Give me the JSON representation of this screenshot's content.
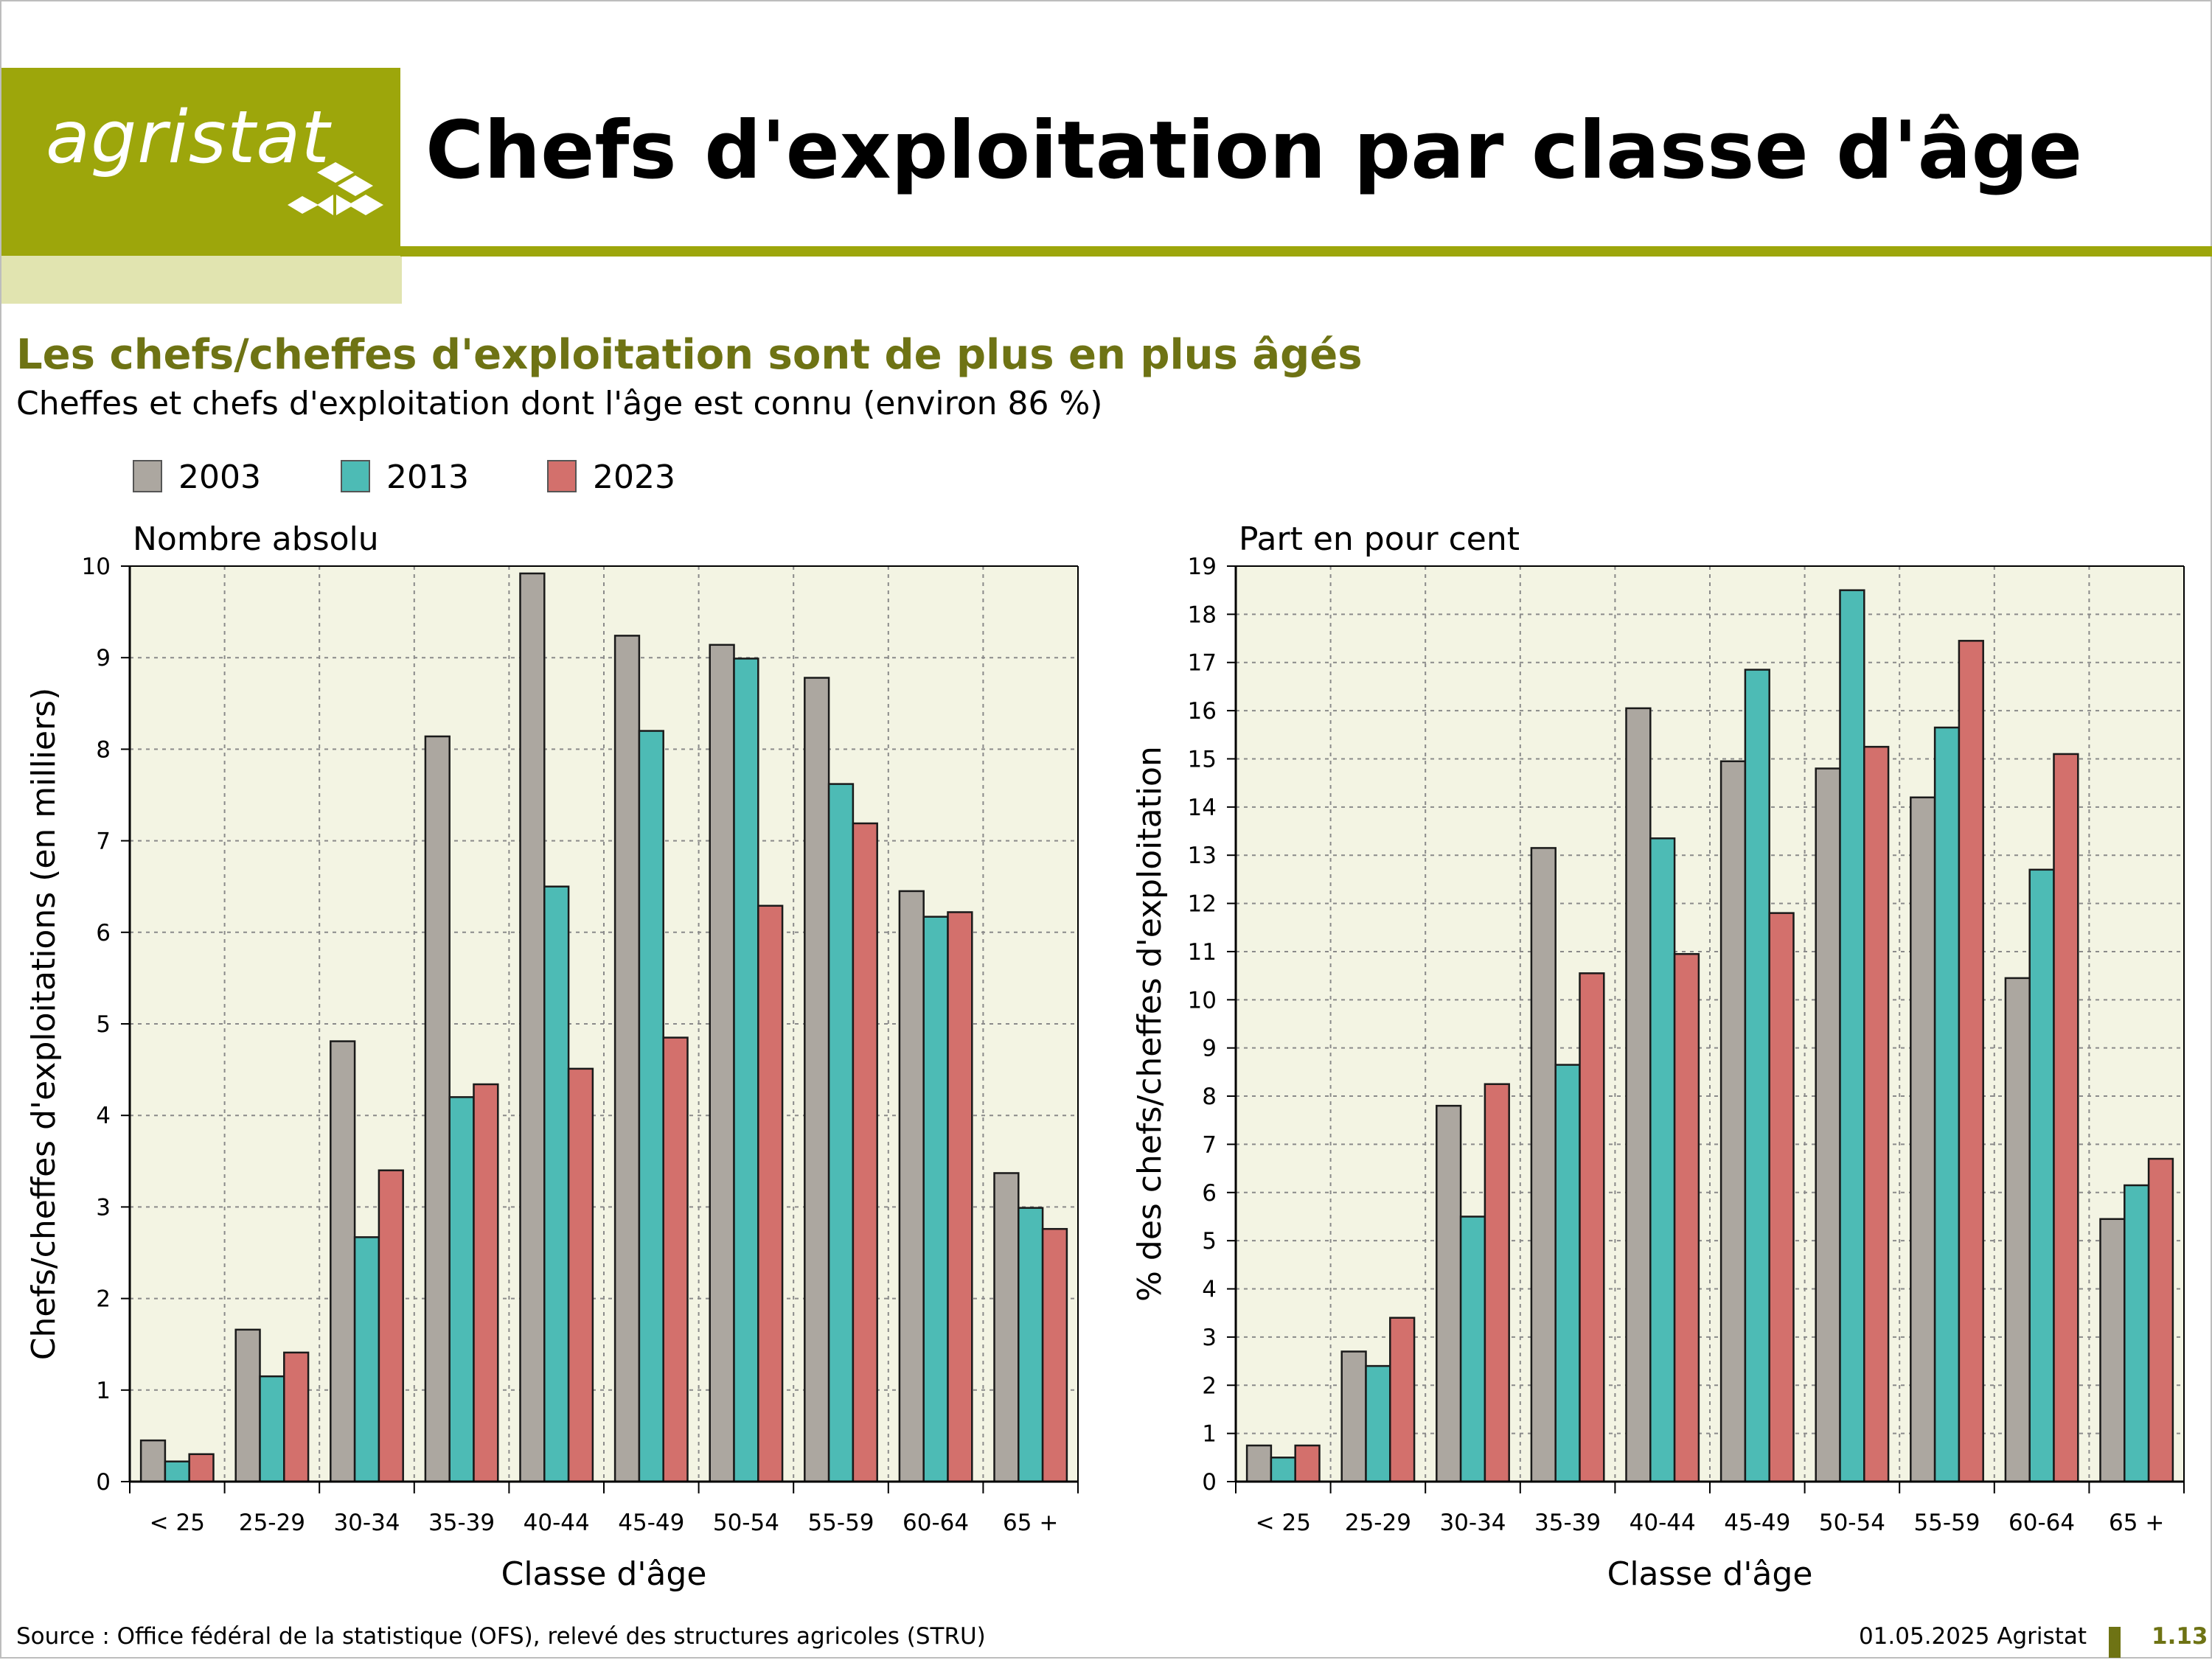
{
  "brand": {
    "name": "agristat",
    "color": "#9da60b",
    "light_color": "#e1e4b0",
    "dark_color": "#6e7314"
  },
  "page": {
    "title": "Chefs d'exploitation par classe d'âge",
    "headline": "Les chefs/cheffes d'exploitation sont de plus en plus âgés",
    "subheadline": "Cheffes et chefs d'exploitation dont l'âge est connu (environ 86 %)"
  },
  "legend": [
    {
      "label": "2003",
      "color": "#aca7a0"
    },
    {
      "label": "2013",
      "color": "#4dbbb5"
    },
    {
      "label": "2023",
      "color": "#d3706c"
    }
  ],
  "chart_data": [
    {
      "type": "bar",
      "title": "Nombre absolu",
      "xlabel": "Classe d'âge",
      "ylabel": "Chefs/cheffes d'exploitations (en milliers)",
      "ylim": [
        0,
        10
      ],
      "yticks": [
        0,
        1,
        2,
        3,
        4,
        5,
        6,
        7,
        8,
        9,
        10
      ],
      "grid": true,
      "categories": [
        "< 25",
        "25-29",
        "30-34",
        "35-39",
        "40-44",
        "45-49",
        "50-54",
        "55-59",
        "60-64",
        "65 +"
      ],
      "series": [
        {
          "name": "2003",
          "color": "#aca7a0",
          "values": [
            0.45,
            1.66,
            4.81,
            8.14,
            9.92,
            9.24,
            9.14,
            8.78,
            6.45,
            3.37
          ]
        },
        {
          "name": "2013",
          "color": "#4dbbb5",
          "values": [
            0.22,
            1.15,
            2.67,
            4.2,
            6.5,
            8.2,
            8.99,
            7.62,
            6.17,
            2.99
          ]
        },
        {
          "name": "2023",
          "color": "#d3706c",
          "values": [
            0.3,
            1.41,
            3.4,
            4.34,
            4.51,
            4.85,
            6.29,
            7.19,
            6.22,
            2.76
          ]
        }
      ]
    },
    {
      "type": "bar",
      "title": "Part en pour cent",
      "xlabel": "Classe d'âge",
      "ylabel": "% des chefs/cheffes d'exploitation",
      "ylim": [
        0,
        19
      ],
      "yticks": [
        0,
        1,
        2,
        3,
        4,
        5,
        6,
        7,
        8,
        9,
        10,
        11,
        12,
        13,
        14,
        15,
        16,
        17,
        18,
        19
      ],
      "grid": true,
      "categories": [
        "< 25",
        "25-29",
        "30-34",
        "35-39",
        "40-44",
        "45-49",
        "50-54",
        "55-59",
        "60-64",
        "65 +"
      ],
      "series": [
        {
          "name": "2003",
          "color": "#aca7a0",
          "values": [
            0.75,
            2.7,
            7.8,
            13.15,
            16.05,
            14.95,
            14.8,
            14.2,
            10.45,
            5.45
          ]
        },
        {
          "name": "2013",
          "color": "#4dbbb5",
          "values": [
            0.5,
            2.4,
            5.5,
            8.65,
            13.35,
            16.85,
            18.5,
            15.65,
            12.7,
            6.15
          ]
        },
        {
          "name": "2023",
          "color": "#d3706c",
          "values": [
            0.75,
            3.4,
            8.25,
            10.55,
            10.95,
            11.8,
            15.25,
            17.45,
            15.1,
            6.7
          ]
        }
      ]
    }
  ],
  "footer": {
    "source": "Source : Office fédéral de la statistique (OFS), relevé des structures agricoles (STRU)",
    "date_brand": "01.05.2025 Agristat",
    "page_number": "1.13"
  }
}
